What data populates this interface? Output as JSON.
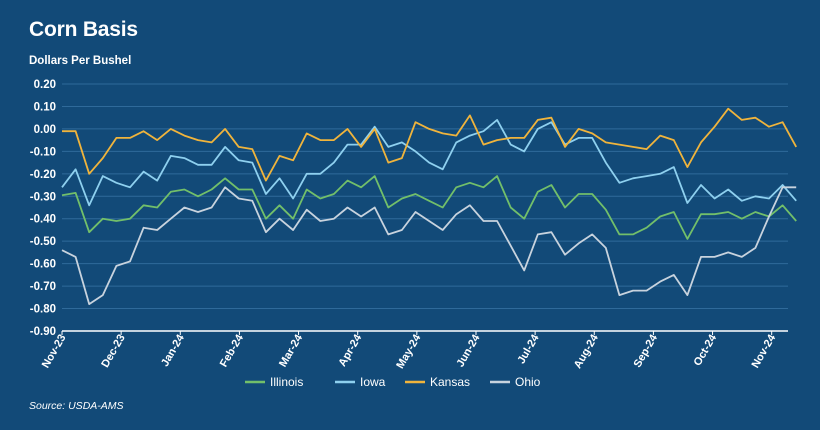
{
  "title": "Corn Basis",
  "source": "Source: USDA-AMS",
  "colors": {
    "background": "#124a78",
    "gridline": "#2f6a9a",
    "axis": "#ffffff",
    "Illinois": "#72bf6a",
    "Iowa": "#8ed0ef",
    "Kansas": "#f0b43c",
    "Ohio": "#c8d3de"
  },
  "chart_data": {
    "type": "line",
    "title": "Corn Basis",
    "ylabel": "Dollars Per Bushel",
    "xlabel": "",
    "ylim": [
      -0.9,
      0.2
    ],
    "yticks": [
      0.2,
      0.1,
      0.0,
      -0.1,
      -0.2,
      -0.3,
      -0.4,
      -0.5,
      -0.6,
      -0.7,
      -0.8,
      -0.9
    ],
    "ytick_labels": [
      "0.20",
      "0.10",
      "0.00",
      "-0.10",
      "-0.20",
      "-0.30",
      "-0.40",
      "-0.50",
      "-0.60",
      "-0.70",
      "-0.80",
      "-0.90"
    ],
    "x_tick_labels": [
      "Nov-23",
      "Dec-23",
      "Jan-24",
      "Feb-24",
      "Mar-24",
      "Apr-24",
      "May-24",
      "Jun-24",
      "Jul-24",
      "Aug-24",
      "Sep-24",
      "Oct-24",
      "Nov-24"
    ],
    "x_tick_positions": [
      0,
      4.35,
      8.7,
      13.05,
      17.4,
      21.75,
      26.1,
      30.45,
      34.8,
      39.15,
      43.5,
      47.85,
      52.2
    ],
    "x_max": 53.4,
    "grid": true,
    "legend": "bottom-center",
    "series": [
      {
        "name": "Illinois",
        "values": [
          -0.295,
          -0.285,
          -0.46,
          -0.4,
          -0.41,
          -0.4,
          -0.34,
          -0.35,
          -0.28,
          -0.27,
          -0.3,
          -0.27,
          -0.22,
          -0.27,
          -0.27,
          -0.4,
          -0.34,
          -0.4,
          -0.27,
          -0.31,
          -0.29,
          -0.23,
          -0.26,
          -0.21,
          -0.35,
          -0.31,
          -0.29,
          -0.32,
          -0.35,
          -0.26,
          -0.24,
          -0.26,
          -0.21,
          -0.35,
          -0.4,
          -0.28,
          -0.25,
          -0.35,
          -0.29,
          -0.29,
          -0.36,
          -0.47,
          -0.47,
          -0.44,
          -0.39,
          -0.37,
          -0.49,
          -0.38,
          -0.38,
          -0.37,
          -0.4,
          -0.37,
          -0.39,
          -0.34,
          -0.41
        ]
      },
      {
        "name": "Iowa",
        "values": [
          -0.26,
          -0.18,
          -0.34,
          -0.21,
          -0.24,
          -0.26,
          -0.19,
          -0.23,
          -0.12,
          -0.13,
          -0.16,
          -0.16,
          -0.08,
          -0.14,
          -0.15,
          -0.29,
          -0.22,
          -0.31,
          -0.2,
          -0.2,
          -0.15,
          -0.07,
          -0.07,
          0.01,
          -0.08,
          -0.06,
          -0.1,
          -0.15,
          -0.18,
          -0.06,
          -0.03,
          -0.01,
          0.04,
          -0.07,
          -0.1,
          0.0,
          0.03,
          -0.07,
          -0.04,
          -0.04,
          -0.15,
          -0.24,
          -0.22,
          -0.21,
          -0.2,
          -0.17,
          -0.33,
          -0.25,
          -0.31,
          -0.27,
          -0.32,
          -0.3,
          -0.31,
          -0.25,
          -0.32
        ]
      },
      {
        "name": "Kansas",
        "values": [
          -0.01,
          -0.01,
          -0.2,
          -0.13,
          -0.04,
          -0.04,
          -0.01,
          -0.05,
          0.0,
          -0.03,
          -0.05,
          -0.06,
          0.0,
          -0.08,
          -0.09,
          -0.23,
          -0.12,
          -0.14,
          -0.02,
          -0.05,
          -0.05,
          0.0,
          -0.08,
          0.0,
          -0.15,
          -0.13,
          0.03,
          0.0,
          -0.02,
          -0.03,
          0.06,
          -0.07,
          -0.05,
          -0.04,
          -0.04,
          0.04,
          0.05,
          -0.08,
          0.0,
          -0.02,
          -0.06,
          -0.07,
          -0.08,
          -0.09,
          -0.03,
          -0.05,
          -0.17,
          -0.06,
          0.01,
          0.09,
          0.04,
          0.05,
          0.01,
          0.03,
          -0.08
        ]
      },
      {
        "name": "Ohio",
        "values": [
          -0.54,
          -0.57,
          -0.78,
          -0.74,
          -0.61,
          -0.59,
          -0.44,
          -0.45,
          -0.4,
          -0.35,
          -0.37,
          -0.35,
          -0.26,
          -0.31,
          -0.32,
          -0.46,
          -0.4,
          -0.45,
          -0.36,
          -0.41,
          -0.4,
          -0.35,
          -0.39,
          -0.35,
          -0.47,
          -0.45,
          -0.37,
          -0.41,
          -0.45,
          -0.38,
          -0.34,
          -0.41,
          -0.41,
          -0.52,
          -0.63,
          -0.47,
          -0.46,
          -0.56,
          -0.51,
          -0.47,
          -0.53,
          -0.74,
          -0.72,
          -0.72,
          -0.68,
          -0.65,
          -0.74,
          -0.57,
          -0.57,
          -0.55,
          -0.57,
          -0.53,
          -0.39,
          -0.26,
          -0.26
        ]
      }
    ]
  }
}
